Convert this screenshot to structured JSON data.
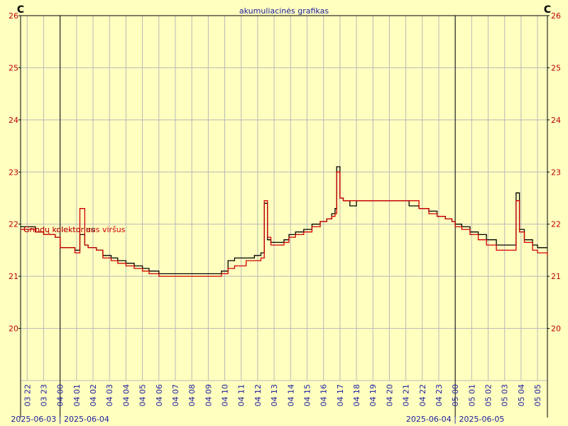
{
  "chart_data": {
    "type": "line",
    "title": "akumuliacinės grafikas",
    "unit_label_left": "C",
    "unit_label_right": "C",
    "ylim": [
      19,
      26
    ],
    "y_ticks": [
      20,
      21,
      22,
      23,
      24,
      25,
      26
    ],
    "x_hours": [
      "03 22",
      "03 23",
      "04 00",
      "04 01",
      "04 02",
      "04 03",
      "04 04",
      "04 05",
      "04 06",
      "04 07",
      "04 08",
      "04 09",
      "04 10",
      "04 11",
      "04 12",
      "04 13",
      "04 14",
      "04 15",
      "04 16",
      "04 17",
      "04 18",
      "04 19",
      "04 20",
      "04 21",
      "04 22",
      "04 23",
      "05 00",
      "05 01",
      "05 02",
      "05 03",
      "05 04",
      "05 05"
    ],
    "date_labels": [
      {
        "text": "2025-06-03 | 2025-06-04",
        "at_hour": 0
      },
      {
        "text": "2025-06-04 | 2025-06-05",
        "at_hour": 24
      }
    ],
    "day_boundaries_hours": [
      0,
      24
    ],
    "x_start_hour": -2.4,
    "x_end_hour": 29.6,
    "series": [
      {
        "name": "Grindų kolektorius",
        "color": "#000000",
        "points": [
          [
            -2.4,
            21.95
          ],
          [
            -2,
            21.95
          ],
          [
            -1.5,
            21.85
          ],
          [
            -1,
            21.8
          ],
          [
            -0.3,
            21.75
          ],
          [
            0,
            21.55
          ],
          [
            0.4,
            21.55
          ],
          [
            0.9,
            21.5
          ],
          [
            1.2,
            21.8
          ],
          [
            1.5,
            21.6
          ],
          [
            1.7,
            21.55
          ],
          [
            2.2,
            21.5
          ],
          [
            2.6,
            21.4
          ],
          [
            3.1,
            21.35
          ],
          [
            3.5,
            21.3
          ],
          [
            4,
            21.25
          ],
          [
            4.5,
            21.2
          ],
          [
            5,
            21.15
          ],
          [
            5.4,
            21.1
          ],
          [
            6,
            21.05
          ],
          [
            7,
            21.05
          ],
          [
            8,
            21.05
          ],
          [
            9.2,
            21.05
          ],
          [
            9.8,
            21.1
          ],
          [
            10.2,
            21.3
          ],
          [
            10.6,
            21.35
          ],
          [
            11.3,
            21.35
          ],
          [
            11.8,
            21.4
          ],
          [
            12.2,
            21.45
          ],
          [
            12.4,
            22.4
          ],
          [
            12.6,
            21.7
          ],
          [
            12.8,
            21.65
          ],
          [
            13.2,
            21.65
          ],
          [
            13.6,
            21.7
          ],
          [
            13.9,
            21.8
          ],
          [
            14.3,
            21.85
          ],
          [
            14.8,
            21.9
          ],
          [
            15.3,
            22
          ],
          [
            15.8,
            22.05
          ],
          [
            16.2,
            22.1
          ],
          [
            16.5,
            22.2
          ],
          [
            16.7,
            22.3
          ],
          [
            16.8,
            23.1
          ],
          [
            17,
            22.5
          ],
          [
            17.2,
            22.45
          ],
          [
            17.6,
            22.35
          ],
          [
            18,
            22.45
          ],
          [
            18.6,
            22.45
          ],
          [
            19,
            22.45
          ],
          [
            19.8,
            22.45
          ],
          [
            20.5,
            22.45
          ],
          [
            21.2,
            22.35
          ],
          [
            21.8,
            22.3
          ],
          [
            22.4,
            22.25
          ],
          [
            22.9,
            22.15
          ],
          [
            23.4,
            22.1
          ],
          [
            23.8,
            22.05
          ],
          [
            24,
            22.0
          ],
          [
            24.4,
            21.95
          ],
          [
            24.9,
            21.85
          ],
          [
            25.4,
            21.8
          ],
          [
            25.9,
            21.7
          ],
          [
            26.5,
            21.6
          ],
          [
            27.4,
            21.6
          ],
          [
            27.7,
            22.6
          ],
          [
            27.9,
            21.9
          ],
          [
            28.2,
            21.7
          ],
          [
            28.7,
            21.6
          ],
          [
            29,
            21.55
          ],
          [
            29.6,
            21.55
          ]
        ]
      },
      {
        "name": "Grindų kolektoriaus viršus",
        "color": "#d00000",
        "points": [
          [
            -2.4,
            21.9
          ],
          [
            -2,
            21.9
          ],
          [
            -1.5,
            21.85
          ],
          [
            -1,
            21.8
          ],
          [
            -0.3,
            21.75
          ],
          [
            0,
            21.55
          ],
          [
            0.4,
            21.55
          ],
          [
            0.9,
            21.45
          ],
          [
            1.2,
            22.3
          ],
          [
            1.5,
            21.6
          ],
          [
            1.7,
            21.55
          ],
          [
            2.2,
            21.5
          ],
          [
            2.6,
            21.35
          ],
          [
            3.1,
            21.3
          ],
          [
            3.5,
            21.25
          ],
          [
            4,
            21.2
          ],
          [
            4.5,
            21.15
          ],
          [
            5,
            21.1
          ],
          [
            5.4,
            21.05
          ],
          [
            6,
            21.0
          ],
          [
            7,
            21.0
          ],
          [
            8,
            21.0
          ],
          [
            9.2,
            21.0
          ],
          [
            9.8,
            21.05
          ],
          [
            10.2,
            21.15
          ],
          [
            10.6,
            21.2
          ],
          [
            11.3,
            21.3
          ],
          [
            11.8,
            21.3
          ],
          [
            12.2,
            21.35
          ],
          [
            12.4,
            22.45
          ],
          [
            12.6,
            21.75
          ],
          [
            12.8,
            21.6
          ],
          [
            13.2,
            21.6
          ],
          [
            13.6,
            21.65
          ],
          [
            13.9,
            21.75
          ],
          [
            14.3,
            21.8
          ],
          [
            14.8,
            21.85
          ],
          [
            15.3,
            21.95
          ],
          [
            15.8,
            22.05
          ],
          [
            16.2,
            22.1
          ],
          [
            16.5,
            22.15
          ],
          [
            16.7,
            22.2
          ],
          [
            16.8,
            23.0
          ],
          [
            17,
            22.5
          ],
          [
            17.2,
            22.45
          ],
          [
            17.6,
            22.45
          ],
          [
            18,
            22.45
          ],
          [
            18.6,
            22.45
          ],
          [
            19,
            22.45
          ],
          [
            19.8,
            22.45
          ],
          [
            20.5,
            22.45
          ],
          [
            21.2,
            22.45
          ],
          [
            21.8,
            22.3
          ],
          [
            22.4,
            22.2
          ],
          [
            22.9,
            22.15
          ],
          [
            23.4,
            22.1
          ],
          [
            23.8,
            22.05
          ],
          [
            24,
            21.95
          ],
          [
            24.4,
            21.9
          ],
          [
            24.9,
            21.8
          ],
          [
            25.4,
            21.7
          ],
          [
            25.9,
            21.6
          ],
          [
            26.5,
            21.5
          ],
          [
            27.4,
            21.5
          ],
          [
            27.7,
            22.45
          ],
          [
            27.9,
            21.85
          ],
          [
            28.2,
            21.65
          ],
          [
            28.7,
            21.5
          ],
          [
            29,
            21.45
          ],
          [
            29.6,
            21.4
          ]
        ]
      }
    ]
  }
}
